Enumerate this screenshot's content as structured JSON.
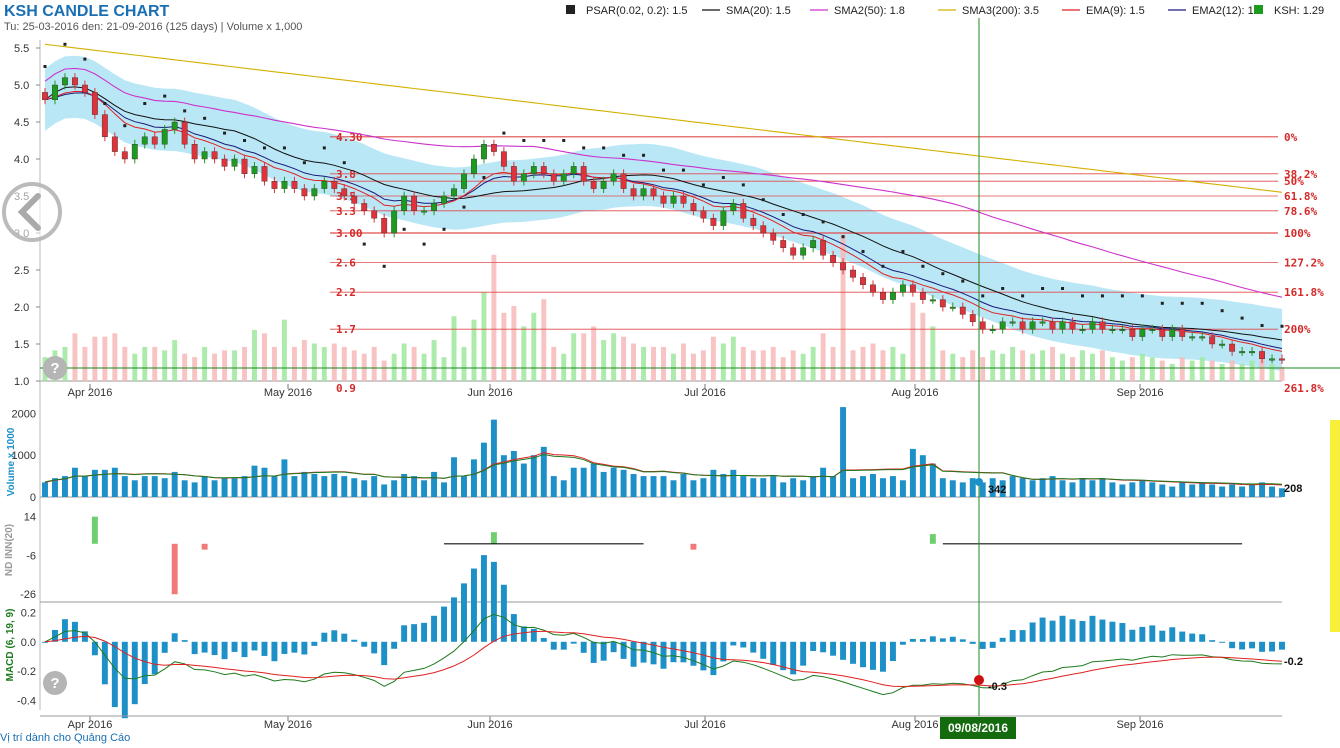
{
  "header": {
    "title": "KSH CANDLE CHART",
    "subtitle": "Tu: 25-03-2016 den: 21-09-2016 (125 days) | Volume x 1,000"
  },
  "legend": [
    {
      "label": "PSAR(0.02, 0.2): 1.5",
      "color": "#222222",
      "kind": "square"
    },
    {
      "label": "SMA(20): 1.5",
      "color": "#111111",
      "kind": "line"
    },
    {
      "label": "SMA2(50): 1.8",
      "color": "#cc33cc",
      "kind": "line"
    },
    {
      "label": "SMA3(200): 3.5",
      "color": "#d4b000",
      "kind": "line"
    },
    {
      "label": "EMA(9): 1.5",
      "color": "#e02020",
      "kind": "line"
    },
    {
      "label": "EMA2(12): 1.6",
      "color": "#1a1a7a",
      "kind": "line"
    },
    {
      "label": "KSH: 1.29",
      "color": "#1e9a1e",
      "kind": "square"
    }
  ],
  "price_axis": [
    "5.5",
    "5.0",
    "4.5",
    "4.0",
    "3.5",
    "3.0",
    "2.5",
    "2.0",
    "1.5",
    "1.0"
  ],
  "month_labels": [
    "Apr 2016",
    "May 2016",
    "Jun 2016",
    "Jul 2016",
    "Aug 2016",
    "Sep 2016"
  ],
  "fib_levels": [
    {
      "label": "0%",
      "value": 4.3,
      "left": "4.30"
    },
    {
      "label": "38.2%",
      "value": 3.8,
      "left": "3.8"
    },
    {
      "label": "50%",
      "value": 3.7,
      "left": ""
    },
    {
      "label": "61.8%",
      "value": 3.5,
      "left": "3.5"
    },
    {
      "label": "78.6%",
      "value": 3.3,
      "left": "3.3"
    },
    {
      "label": "100%",
      "value": 3.0,
      "left": "3.00"
    },
    {
      "label": "127.2%",
      "value": 2.6,
      "left": "2.6"
    },
    {
      "label": "161.8%",
      "value": 2.2,
      "left": "2.2"
    },
    {
      "label": "200%",
      "value": 1.7,
      "left": "1.7"
    },
    {
      "label": "261.8%",
      "value": 0.9,
      "left": "0.9"
    }
  ],
  "volume_panel": {
    "label": "Volume x 1000",
    "ticks": [
      "2000",
      "1000",
      "0"
    ],
    "last": "208",
    "cursor": "342"
  },
  "nd_panel": {
    "label": "ND INN(20)",
    "ticks": [
      "14",
      "-6",
      "-26"
    ]
  },
  "macd_panel": {
    "label": "MACD (6, 19, 9)",
    "ticks": [
      "0.2",
      "0.0",
      "-0.2",
      "-0.4"
    ],
    "last": "-0.2",
    "cursor": "-0.3"
  },
  "cursor_date": "09/08/2016",
  "footer": "Vị trí dành cho Quảng Cáo",
  "colors": {
    "up": "#1e9a1e",
    "down": "#e0323a",
    "cloud": "#aee3f5",
    "volume": "#1e90c8"
  },
  "chart_data": [
    {
      "type": "candlestick",
      "title": "KSH CANDLE CHART",
      "x_start": "2016-03-25",
      "x_end": "2016-09-21",
      "ylim": [
        1.0,
        5.6
      ],
      "ohlc_close": [
        4.8,
        5.0,
        5.1,
        5.0,
        4.9,
        4.6,
        4.3,
        4.1,
        4.0,
        4.2,
        4.3,
        4.2,
        4.4,
        4.5,
        4.2,
        4.0,
        4.1,
        4.0,
        3.9,
        4.0,
        3.8,
        3.9,
        3.7,
        3.6,
        3.7,
        3.6,
        3.5,
        3.6,
        3.7,
        3.6,
        3.5,
        3.4,
        3.3,
        3.2,
        3.0,
        3.3,
        3.5,
        3.3,
        3.3,
        3.4,
        3.5,
        3.6,
        3.8,
        4.0,
        4.2,
        4.1,
        3.9,
        3.7,
        3.8,
        3.9,
        3.8,
        3.7,
        3.8,
        3.9,
        3.7,
        3.6,
        3.7,
        3.8,
        3.6,
        3.5,
        3.6,
        3.5,
        3.4,
        3.5,
        3.4,
        3.3,
        3.2,
        3.1,
        3.3,
        3.4,
        3.2,
        3.1,
        3.0,
        2.9,
        2.8,
        2.7,
        2.8,
        2.9,
        2.7,
        2.6,
        2.5,
        2.4,
        2.3,
        2.2,
        2.1,
        2.2,
        2.3,
        2.2,
        2.1,
        2.1,
        2.0,
        2.0,
        1.9,
        1.8,
        1.7,
        1.7,
        1.8,
        1.8,
        1.7,
        1.8,
        1.8,
        1.7,
        1.8,
        1.7,
        1.7,
        1.8,
        1.7,
        1.7,
        1.7,
        1.6,
        1.7,
        1.7,
        1.6,
        1.7,
        1.6,
        1.6,
        1.6,
        1.5,
        1.5,
        1.4,
        1.4,
        1.4,
        1.3,
        1.3,
        1.29
      ],
      "last": 1.29
    },
    {
      "type": "bar",
      "title": "Volume x 1000",
      "ylim": [
        0,
        2200
      ],
      "values": [
        350,
        450,
        500,
        700,
        500,
        650,
        650,
        700,
        500,
        400,
        500,
        500,
        450,
        600,
        400,
        350,
        500,
        400,
        450,
        450,
        500,
        750,
        700,
        500,
        900,
        500,
        600,
        550,
        500,
        550,
        500,
        450,
        400,
        500,
        300,
        400,
        550,
        500,
        400,
        600,
        350,
        950,
        500,
        900,
        1300,
        1850,
        1000,
        1100,
        800,
        1000,
        1200,
        500,
        400,
        700,
        700,
        800,
        600,
        700,
        650,
        550,
        500,
        500,
        500,
        400,
        550,
        400,
        450,
        650,
        550,
        650,
        500,
        450,
        450,
        500,
        350,
        450,
        400,
        500,
        700,
        500,
        2150,
        450,
        500,
        550,
        450,
        500,
        400,
        1150,
        1000,
        800,
        450,
        400,
        350,
        450,
        350,
        450,
        400,
        500,
        450,
        400,
        450,
        500,
        400,
        350,
        450,
        400,
        450,
        350,
        300,
        350,
        400,
        350,
        300,
        250,
        350,
        300,
        350,
        300,
        250,
        300,
        250,
        300,
        350,
        250,
        208
      ],
      "average": 450,
      "last": 208,
      "cursor_value": 342
    },
    {
      "type": "bar",
      "title": "ND INN(20)",
      "ylim": [
        -30,
        20
      ],
      "values": [
        0,
        0,
        0,
        0,
        0,
        14,
        0,
        0,
        0,
        0,
        0,
        0,
        0,
        -26,
        0,
        0,
        -3,
        0,
        0,
        0,
        0,
        0,
        0,
        0,
        0,
        0,
        0,
        0,
        0,
        0,
        0,
        0,
        0,
        0,
        0,
        0,
        0,
        0,
        0,
        0,
        0,
        0,
        0,
        0,
        0,
        6,
        0,
        0,
        0,
        0,
        0,
        0,
        0,
        0,
        0,
        0,
        0,
        0,
        0,
        0,
        0,
        0,
        0,
        0,
        0,
        -3,
        0,
        0,
        0,
        0,
        0,
        0,
        0,
        0,
        0,
        0,
        0,
        0,
        0,
        0,
        0,
        0,
        0,
        0,
        0,
        0,
        0,
        0,
        0,
        5,
        0,
        0,
        0,
        0,
        0,
        0,
        0,
        0,
        0,
        0,
        0,
        0,
        0,
        0,
        0,
        0,
        0,
        0,
        0,
        0,
        0,
        0,
        0,
        0,
        0,
        0,
        0,
        0,
        0,
        0,
        0,
        0,
        0,
        0,
        0
      ]
    },
    {
      "type": "line",
      "title": "MACD (6, 19, 9)",
      "ylim": [
        -0.45,
        0.25
      ],
      "last": -0.2,
      "cursor_value": -0.3
    }
  ]
}
